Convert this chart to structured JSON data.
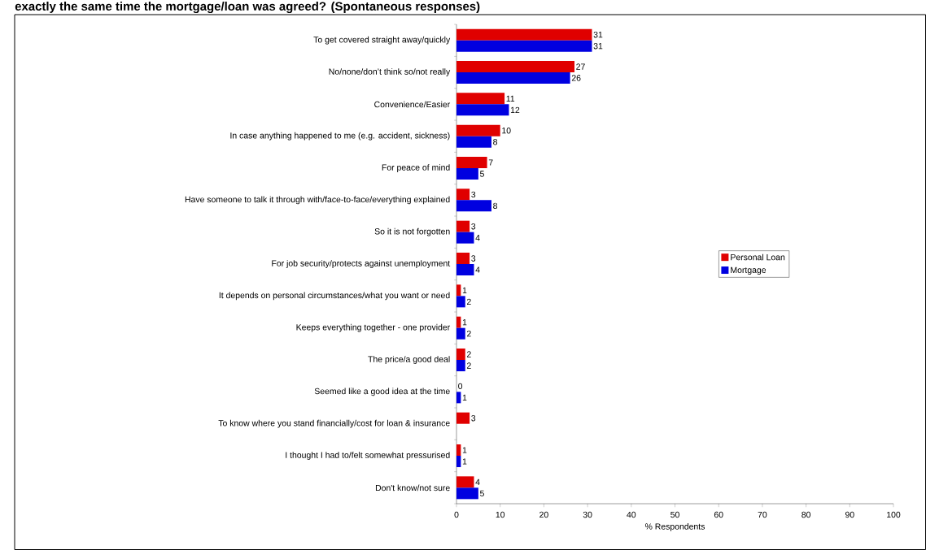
{
  "chart_data": {
    "type": "bar",
    "orientation": "horizontal",
    "title": "exactly the same time the mortgage/loan was agreed? (Spontaneous responses)",
    "xlabel": "% Respondents",
    "categories": [
      "To get covered straight away/quickly",
      "No/none/don’t think so/not really",
      "Convenience/Easier",
      "In case anything happened to me (e.g. accident, sickness)",
      "For peace of mind",
      "Have someone to talk it through with/face-to-face/everything explained",
      "So it is not forgotten",
      "For job security/protects against unemployment",
      "It depends on personal circumstances/what you want or need",
      "Keeps everything together - one provider",
      "The price/a good deal",
      "Seemed like a good idea at the time",
      "To know where you stand financially/cost for loan & insurance",
      "I thought I had to/felt somewhat pressurised",
      "Don't know/not sure"
    ],
    "series": [
      {
        "name": "Personal Loan",
        "color": "#e00000",
        "values": [
          31,
          27,
          11,
          10,
          7,
          3,
          3,
          3,
          1,
          1,
          2,
          0,
          3,
          1,
          4
        ]
      },
      {
        "name": "Mortgage",
        "color": "#0000e0",
        "values": [
          31,
          26,
          12,
          8,
          5,
          8,
          4,
          4,
          2,
          2,
          2,
          1,
          null,
          1,
          5
        ]
      }
    ],
    "xlim": [
      0,
      100
    ],
    "xticks": [
      0,
      10,
      20,
      30,
      40,
      50,
      60,
      70,
      80,
      90,
      100
    ],
    "data_labels": true,
    "legend": "right",
    "grid": false
  }
}
